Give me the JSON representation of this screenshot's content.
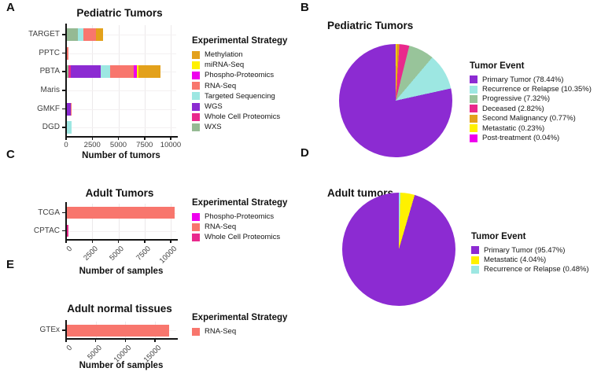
{
  "colors": {
    "Methylation": "#E3A11B",
    "miRNA-Seq": "#FFF100",
    "Phospho-Proteomics": "#EE00EE",
    "RNA-Seq": "#F8766D",
    "Targeted Sequencing": "#9DE7E2",
    "WGS": "#8C2BD2",
    "Whole Cell Proteomics": "#E9298C",
    "WXS": "#95BA93",
    "Primary Tumor": "#8C2BD2",
    "Recurrence or Relapse": "#9DE7E2",
    "Progressive": "#98C49A",
    "Deceased": "#E9298C",
    "Second Malignancy": "#E3A11B",
    "Metastatic": "#FFF100",
    "Post-treatment": "#EE00EE"
  },
  "chart_data": [
    {
      "panel": "A",
      "type": "bar",
      "orientation": "horizontal",
      "title": "Pediatric Tumors",
      "xlabel": "Number of tumors",
      "x_ticks": [
        0,
        2500,
        5000,
        7500,
        10000
      ],
      "legend_title": "Experimental Strategy",
      "legend": [
        "Methylation",
        "miRNA-Seq",
        "Phospho-Proteomics",
        "RNA-Seq",
        "Targeted Sequencing",
        "WGS",
        "Whole Cell Proteomics",
        "WXS"
      ],
      "categories": [
        "TARGET",
        "PPTC",
        "PBTA",
        "Maris",
        "GMKF",
        "DGD"
      ],
      "bars": [
        {
          "category": "TARGET",
          "segments": [
            {
              "name": "WXS",
              "value": 1150
            },
            {
              "name": "Targeted Sequencing",
              "value": 500
            },
            {
              "name": "RNA-Seq",
              "value": 1200
            },
            {
              "name": "Methylation",
              "value": 650
            }
          ]
        },
        {
          "category": "PPTC",
          "segments": [
            {
              "name": "RNA-Seq",
              "value": 220
            }
          ]
        },
        {
          "category": "PBTA",
          "segments": [
            {
              "name": "WXS",
              "value": 200
            },
            {
              "name": "Whole Cell Proteomics",
              "value": 250
            },
            {
              "name": "WGS",
              "value": 2850
            },
            {
              "name": "Targeted Sequencing",
              "value": 950
            },
            {
              "name": "RNA-Seq",
              "value": 2250
            },
            {
              "name": "Phospho-Proteomics",
              "value": 250
            },
            {
              "name": "miRNA-Seq",
              "value": 150
            },
            {
              "name": "Methylation",
              "value": 2100
            }
          ]
        },
        {
          "category": "Maris",
          "segments": [
            {
              "name": "RNA-Seq",
              "value": 40
            }
          ]
        },
        {
          "category": "GMKF",
          "segments": [
            {
              "name": "WGS",
              "value": 420
            },
            {
              "name": "RNA-Seq",
              "value": 60
            }
          ]
        },
        {
          "category": "DGD",
          "segments": [
            {
              "name": "Targeted Sequencing",
              "value": 550
            }
          ]
        }
      ]
    },
    {
      "panel": "B",
      "type": "pie",
      "title": "Pediatric Tumors",
      "legend_title": "Tumor Event",
      "slices": [
        {
          "name": "Primary Tumor",
          "value": 78.44
        },
        {
          "name": "Recurrence or Relapse",
          "value": 10.35
        },
        {
          "name": "Progressive",
          "value": 7.32
        },
        {
          "name": "Deceased",
          "value": 2.82
        },
        {
          "name": "Second Malignancy",
          "value": 0.77
        },
        {
          "name": "Metastatic",
          "value": 0.23
        },
        {
          "name": "Post-treatment",
          "value": 0.04
        }
      ]
    },
    {
      "panel": "C",
      "type": "bar",
      "orientation": "horizontal",
      "title": "Adult Tumors",
      "xlabel": "Number of samples",
      "x_ticks": [
        0,
        2500,
        5000,
        7500,
        10000
      ],
      "legend_title": "Experimental Strategy",
      "legend": [
        "Phospho-Proteomics",
        "RNA-Seq",
        "Whole Cell Proteomics"
      ],
      "categories": [
        "TCGA",
        "CPTAC"
      ],
      "bars": [
        {
          "category": "TCGA",
          "segments": [
            {
              "name": "RNA-Seq",
              "value": 10400
            }
          ]
        },
        {
          "category": "CPTAC",
          "segments": [
            {
              "name": "Phospho-Proteomics",
              "value": 110
            },
            {
              "name": "Whole Cell Proteomics",
              "value": 110
            }
          ]
        }
      ]
    },
    {
      "panel": "D",
      "type": "pie",
      "title": "Adult tumors",
      "legend_title": "Tumor Event",
      "slices": [
        {
          "name": "Primary Tumor",
          "value": 95.47
        },
        {
          "name": "Metastatic",
          "value": 4.04
        },
        {
          "name": "Recurrence or Relapse",
          "value": 0.48
        }
      ]
    },
    {
      "panel": "E",
      "type": "bar",
      "orientation": "horizontal",
      "title": "Adult normal tissues",
      "xlabel": "Number of samples",
      "x_ticks": [
        0,
        5000,
        10000,
        15000
      ],
      "legend_title": "Experimental Strategy",
      "legend": [
        "RNA-Seq"
      ],
      "categories": [
        "GTEx"
      ],
      "bars": [
        {
          "category": "GTEx",
          "segments": [
            {
              "name": "RNA-Seq",
              "value": 17400
            }
          ]
        }
      ]
    }
  ]
}
